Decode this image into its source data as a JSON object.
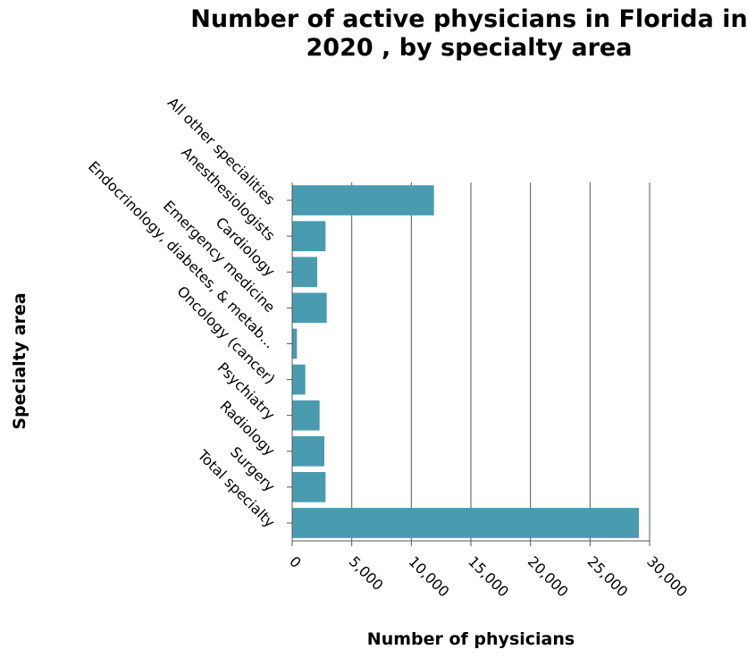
{
  "chart_data": {
    "type": "bar",
    "orientation": "horizontal",
    "title_lines": [
      "Number of active physicians in Florida in",
      "2020 , by specialty area"
    ],
    "xlabel": "Number of physicians",
    "ylabel": "Specialty area",
    "categories": [
      "All other specialities",
      "Anesthesiologists",
      "Cardiology",
      "Emergency medicine",
      "Endocrinology, diabetes, & metab...",
      "Oncology (cancer)",
      "Psychiatry",
      "Radiology",
      "Surgery",
      "Total specialty"
    ],
    "values": [
      11900,
      2800,
      2100,
      2900,
      400,
      1100,
      2300,
      2700,
      2800,
      29100
    ],
    "xlim": [
      0,
      30000
    ],
    "xticks": [
      0,
      5000,
      10000,
      15000,
      20000,
      25000,
      30000
    ],
    "xtick_labels": [
      "0",
      "5,000",
      "10,000",
      "15,000",
      "20,000",
      "25,000",
      "30,000"
    ],
    "grid": "vertical",
    "bar_color": "#4a9ab0"
  }
}
